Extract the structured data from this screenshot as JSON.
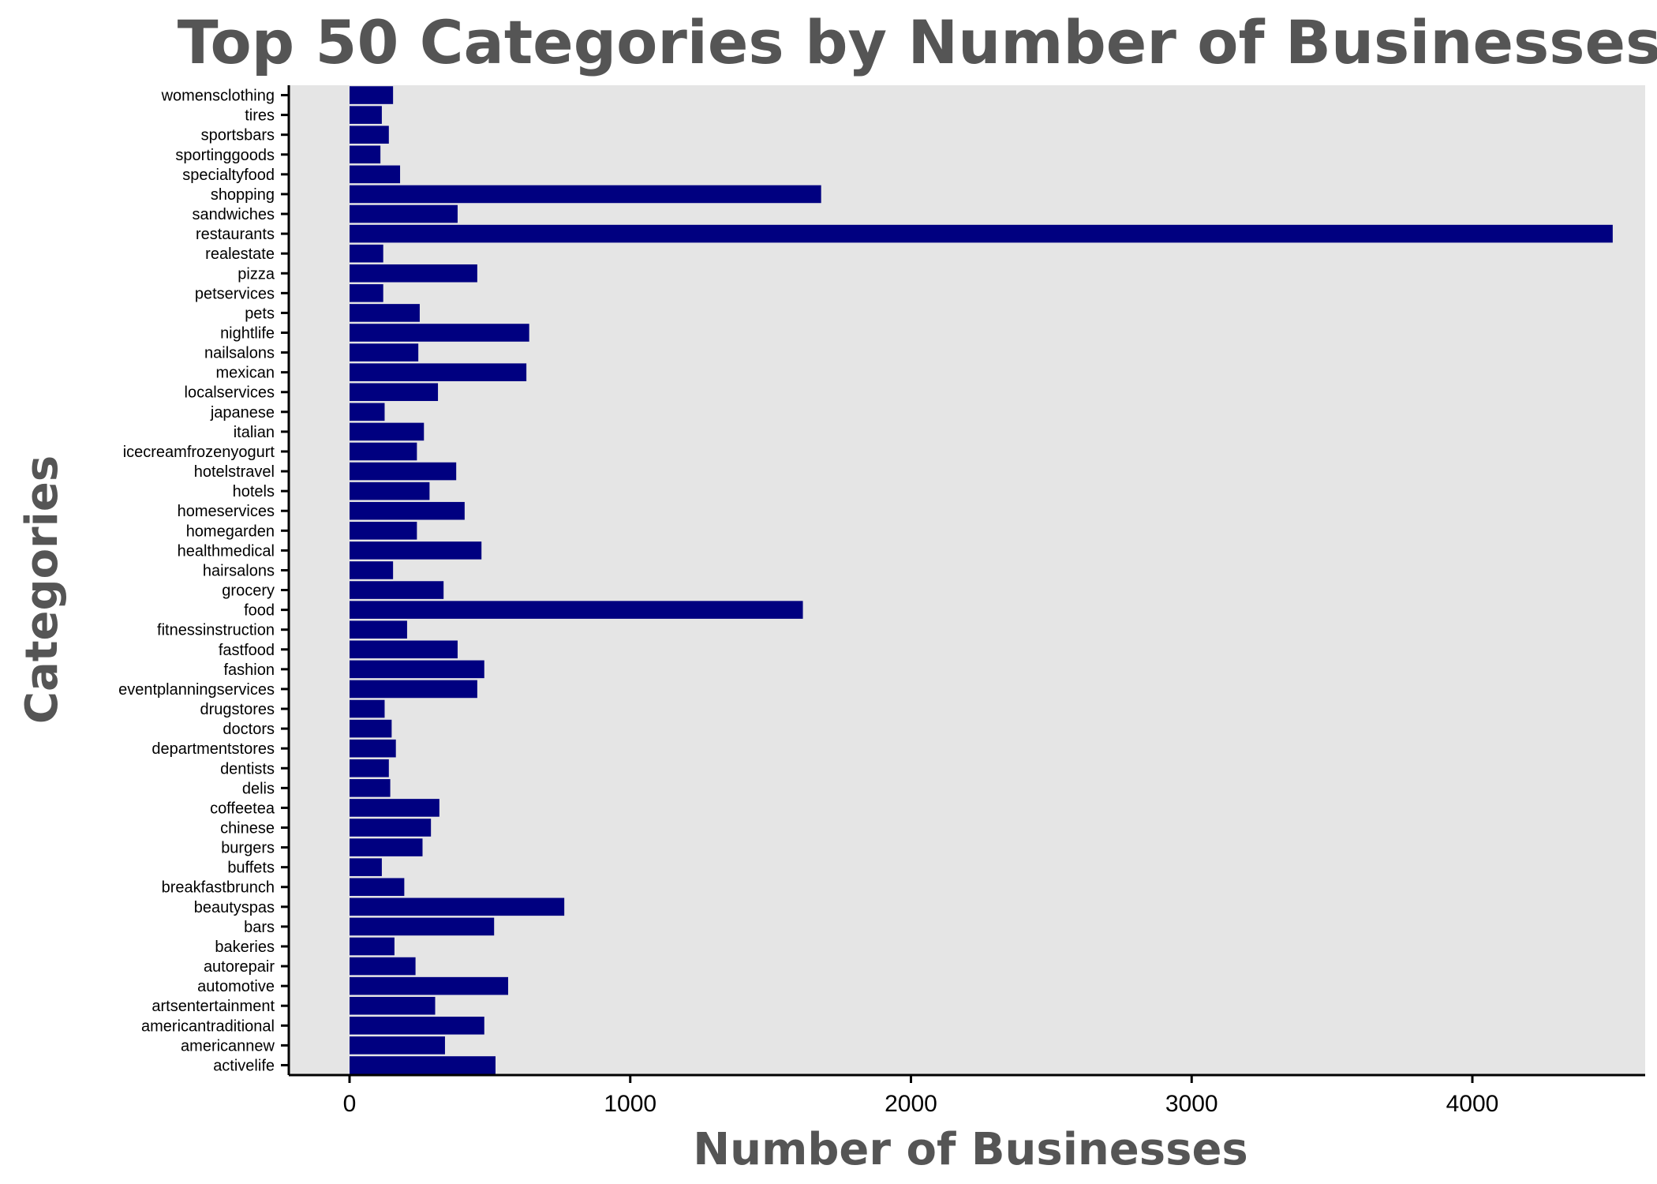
{
  "chart_data": {
    "type": "bar",
    "orientation": "horizontal",
    "title": "Top 50 Categories by Number of Businesses",
    "xlabel": "Number of Businesses",
    "ylabel": "Categories",
    "xlim": [
      -225,
      4700
    ],
    "xticks": [
      0,
      1000,
      2000,
      3000,
      4000
    ],
    "grid": false,
    "bar_color": "#000080",
    "panel_color": "#e5e5e5",
    "categories": [
      "activelife",
      "americannew",
      "americantraditional",
      "artsentertainment",
      "automotive",
      "autorepair",
      "bakeries",
      "bars",
      "beautyspas",
      "breakfastbrunch",
      "buffets",
      "burgers",
      "chinese",
      "coffeetea",
      "delis",
      "dentists",
      "departmentstores",
      "doctors",
      "drugstores",
      "eventplanningservices",
      "fashion",
      "fastfood",
      "fitnessinstruction",
      "food",
      "grocery",
      "hairsalons",
      "healthmedical",
      "homegarden",
      "homeservices",
      "hotels",
      "hotelstravel",
      "icecreamfrozenyogurt",
      "italian",
      "japanese",
      "localservices",
      "mexican",
      "nailsalons",
      "nightlife",
      "pets",
      "petservices",
      "pizza",
      "realestate",
      "restaurants",
      "sandwiches",
      "shopping",
      "specialtyfood",
      "sportinggoods",
      "sportsbars",
      "tires",
      "womensclothing"
    ],
    "values": [
      520,
      340,
      480,
      305,
      565,
      235,
      160,
      515,
      765,
      195,
      115,
      260,
      290,
      320,
      145,
      140,
      165,
      150,
      125,
      455,
      480,
      385,
      205,
      1615,
      335,
      155,
      470,
      240,
      410,
      285,
      380,
      240,
      265,
      125,
      315,
      630,
      245,
      640,
      250,
      120,
      455,
      120,
      4500,
      385,
      1680,
      180,
      110,
      140,
      115,
      155
    ]
  }
}
